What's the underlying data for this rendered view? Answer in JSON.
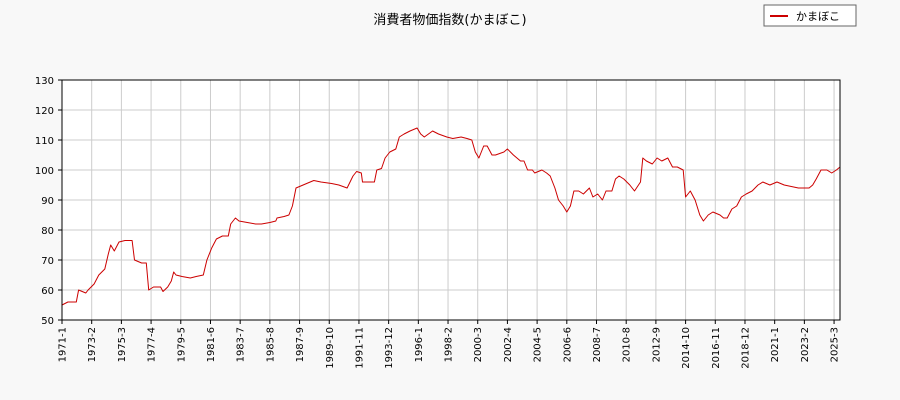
{
  "chart_data": {
    "type": "line",
    "title": "消費者物価指数(かまぼこ)",
    "xlabel": "",
    "ylabel": "",
    "ylim": [
      50,
      130
    ],
    "yticks": [
      50,
      60,
      70,
      80,
      90,
      100,
      110,
      120,
      130
    ],
    "xlim": [
      "1971-01",
      "2025-08"
    ],
    "xtick_labels": [
      "1971-1",
      "1973-2",
      "1975-3",
      "1977-4",
      "1979-5",
      "1981-6",
      "1983-7",
      "1985-8",
      "1987-9",
      "1989-10",
      "1991-11",
      "1993-12",
      "1996-1",
      "1998-2",
      "2000-3",
      "2002-4",
      "2004-5",
      "2006-6",
      "2008-7",
      "2010-8",
      "2012-9",
      "2014-10",
      "2016-11",
      "2018-12",
      "2021-1",
      "2023-2",
      "2025-3"
    ],
    "grid": true,
    "legend_position": "top-right",
    "series": [
      {
        "name": "かまぼこ",
        "color": "#cc0000",
        "points": [
          [
            "1971-01",
            55
          ],
          [
            "1971-06",
            56
          ],
          [
            "1972-01",
            56
          ],
          [
            "1972-03",
            60
          ],
          [
            "1972-09",
            59
          ],
          [
            "1972-11",
            60
          ],
          [
            "1973-04",
            62
          ],
          [
            "1973-08",
            65
          ],
          [
            "1974-01",
            67
          ],
          [
            "1974-04",
            72
          ],
          [
            "1974-06",
            75
          ],
          [
            "1974-09",
            73
          ],
          [
            "1975-01",
            76
          ],
          [
            "1975-06",
            76.5
          ],
          [
            "1975-12",
            76.5
          ],
          [
            "1976-02",
            70
          ],
          [
            "1976-08",
            69
          ],
          [
            "1976-12",
            69
          ],
          [
            "1977-02",
            60
          ],
          [
            "1977-06",
            61
          ],
          [
            "1977-12",
            61
          ],
          [
            "1978-02",
            59.5
          ],
          [
            "1978-06",
            61
          ],
          [
            "1978-09",
            63
          ],
          [
            "1978-11",
            66
          ],
          [
            "1979-01",
            65
          ],
          [
            "1979-06",
            64.5
          ],
          [
            "1980-01",
            64
          ],
          [
            "1980-06",
            64.5
          ],
          [
            "1980-12",
            65
          ],
          [
            "1981-03",
            70
          ],
          [
            "1981-07",
            74
          ],
          [
            "1981-11",
            77
          ],
          [
            "1982-04",
            78
          ],
          [
            "1982-09",
            78
          ],
          [
            "1982-11",
            82
          ],
          [
            "1983-03",
            84
          ],
          [
            "1983-06",
            83
          ],
          [
            "1984-01",
            82.5
          ],
          [
            "1984-08",
            82
          ],
          [
            "1985-01",
            82
          ],
          [
            "1985-08",
            82.5
          ],
          [
            "1986-01",
            83
          ],
          [
            "1986-02",
            84
          ],
          [
            "1986-08",
            84.5
          ],
          [
            "1986-12",
            85
          ],
          [
            "1987-03",
            88
          ],
          [
            "1987-06",
            94
          ],
          [
            "1987-12",
            95
          ],
          [
            "1988-06",
            96
          ],
          [
            "1988-09",
            96.5
          ],
          [
            "1989-03",
            96
          ],
          [
            "1989-12",
            95.5
          ],
          [
            "1990-06",
            95
          ],
          [
            "1991-01",
            94
          ],
          [
            "1991-06",
            98
          ],
          [
            "1991-09",
            99.5
          ],
          [
            "1992-01",
            99
          ],
          [
            "1992-02",
            96
          ],
          [
            "1992-08",
            96
          ],
          [
            "1992-12",
            96
          ],
          [
            "1993-02",
            100
          ],
          [
            "1993-06",
            100.5
          ],
          [
            "1993-09",
            104
          ],
          [
            "1994-01",
            106
          ],
          [
            "1994-06",
            107
          ],
          [
            "1994-09",
            111
          ],
          [
            "1995-01",
            112
          ],
          [
            "1995-06",
            113
          ],
          [
            "1995-12",
            114
          ],
          [
            "1996-03",
            112
          ],
          [
            "1996-06",
            111
          ],
          [
            "1997-01",
            113
          ],
          [
            "1997-06",
            112
          ],
          [
            "1998-01",
            111
          ],
          [
            "1998-06",
            110.5
          ],
          [
            "1999-01",
            111
          ],
          [
            "1999-06",
            110.5
          ],
          [
            "1999-10",
            110
          ],
          [
            "2000-01",
            106
          ],
          [
            "2000-04",
            104
          ],
          [
            "2000-08",
            108
          ],
          [
            "2000-11",
            108
          ],
          [
            "2001-03",
            105
          ],
          [
            "2001-06",
            105
          ],
          [
            "2002-01",
            106
          ],
          [
            "2002-04",
            107
          ],
          [
            "2002-09",
            105
          ],
          [
            "2003-03",
            103
          ],
          [
            "2003-06",
            103
          ],
          [
            "2003-09",
            100
          ],
          [
            "2004-01",
            100
          ],
          [
            "2004-03",
            99
          ],
          [
            "2004-09",
            100
          ],
          [
            "2005-01",
            99
          ],
          [
            "2005-04",
            98
          ],
          [
            "2005-08",
            94
          ],
          [
            "2005-11",
            90
          ],
          [
            "2006-03",
            88
          ],
          [
            "2006-06",
            86
          ],
          [
            "2006-09",
            88
          ],
          [
            "2006-12",
            93
          ],
          [
            "2007-04",
            93
          ],
          [
            "2007-08",
            92
          ],
          [
            "2008-01",
            94
          ],
          [
            "2008-04",
            91
          ],
          [
            "2008-08",
            92
          ],
          [
            "2008-12",
            90
          ],
          [
            "2009-03",
            93
          ],
          [
            "2009-08",
            93
          ],
          [
            "2009-11",
            97
          ],
          [
            "2010-02",
            98
          ],
          [
            "2010-06",
            97
          ],
          [
            "2010-11",
            95
          ],
          [
            "2011-03",
            93
          ],
          [
            "2011-08",
            96
          ],
          [
            "2011-10",
            104
          ],
          [
            "2012-01",
            103
          ],
          [
            "2012-06",
            102
          ],
          [
            "2012-10",
            104
          ],
          [
            "2013-02",
            103
          ],
          [
            "2013-07",
            104
          ],
          [
            "2013-11",
            101
          ],
          [
            "2014-03",
            101
          ],
          [
            "2014-08",
            100
          ],
          [
            "2014-10",
            91
          ],
          [
            "2015-02",
            93
          ],
          [
            "2015-06",
            90
          ],
          [
            "2015-10",
            85
          ],
          [
            "2016-01",
            83
          ],
          [
            "2016-05",
            85
          ],
          [
            "2016-09",
            86
          ],
          [
            "2017-03",
            85
          ],
          [
            "2017-06",
            84
          ],
          [
            "2017-09",
            84
          ],
          [
            "2018-01",
            87
          ],
          [
            "2018-05",
            88
          ],
          [
            "2018-09",
            91
          ],
          [
            "2019-01",
            92
          ],
          [
            "2019-06",
            93
          ],
          [
            "2019-11",
            95
          ],
          [
            "2020-03",
            96
          ],
          [
            "2020-09",
            95
          ],
          [
            "2021-03",
            96
          ],
          [
            "2021-09",
            95
          ],
          [
            "2022-03",
            94.5
          ],
          [
            "2022-09",
            94
          ],
          [
            "2023-03",
            94
          ],
          [
            "2023-06",
            94
          ],
          [
            "2023-09",
            95
          ],
          [
            "2023-12",
            97
          ],
          [
            "2024-04",
            100
          ],
          [
            "2024-09",
            100
          ],
          [
            "2025-01",
            99
          ],
          [
            "2025-05",
            100
          ],
          [
            "2025-08",
            101
          ]
        ]
      }
    ]
  }
}
